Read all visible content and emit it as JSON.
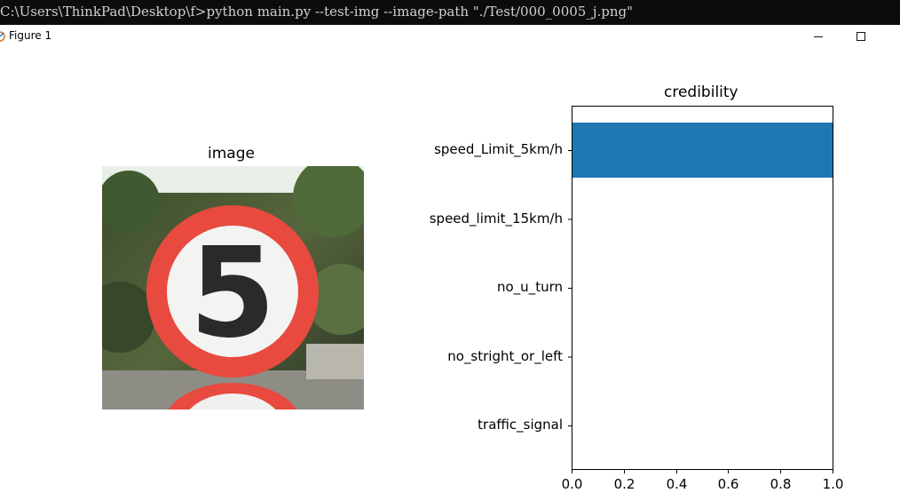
{
  "console": {
    "command": "C:\\Users\\ThinkPad\\Desktop\\f>python main.py --test-img --image-path \"./Test/000_0005_j.png\""
  },
  "window": {
    "title": "Figure 1",
    "icon": "matplotlib-icon",
    "minimize_icon": "minimize-icon",
    "maximize_icon": "maximize-icon"
  },
  "image_panel": {
    "title": "image",
    "content": "speed-limit-5-sign-photo"
  },
  "chart_data": {
    "type": "bar",
    "orientation": "horizontal",
    "title": "credibility",
    "categories": [
      "speed_Limit_5km/h",
      "speed_limit_15km/h",
      "no_u_turn",
      "no_stright_or_left",
      "traffic_signal"
    ],
    "values": [
      1.0,
      0.0,
      0.0,
      0.0,
      0.0
    ],
    "xlim": [
      0.0,
      1.0
    ],
    "xticks": [
      "0.0",
      "0.2",
      "0.4",
      "0.6",
      "0.8",
      "1.0"
    ],
    "xlabel": "",
    "ylabel": "",
    "bar_color": "#1f77b4",
    "grid": false
  }
}
